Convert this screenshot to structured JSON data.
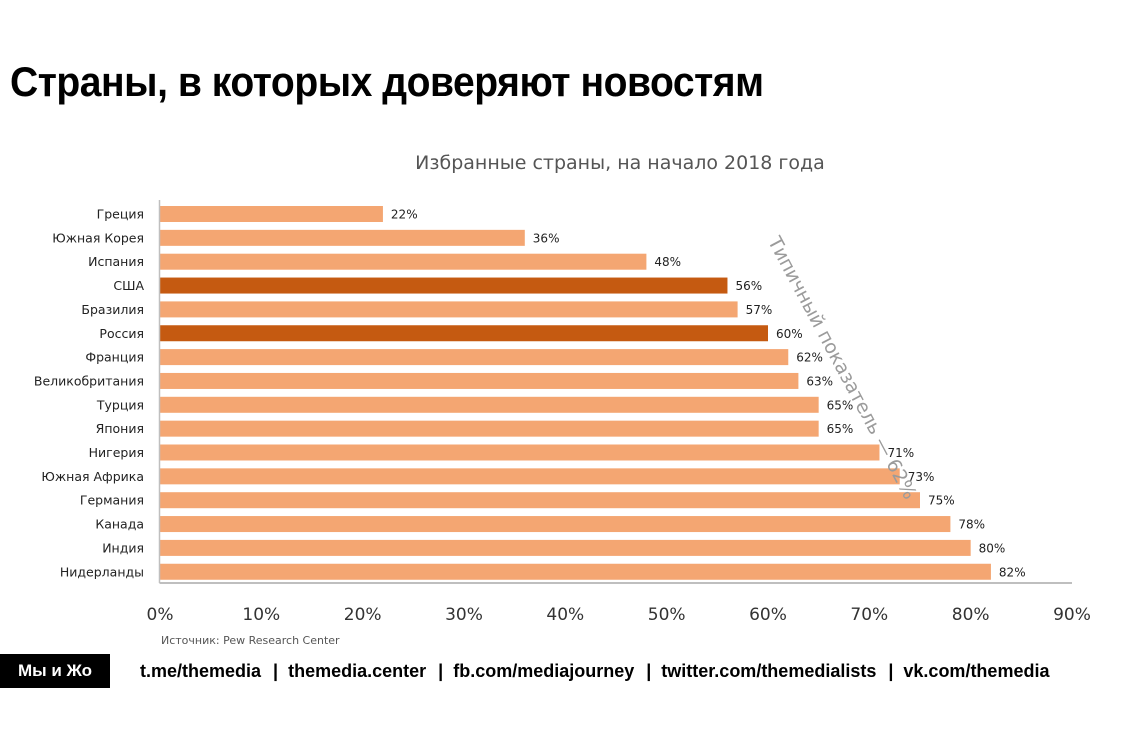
{
  "title": "Страны, в которых доверяют новостям",
  "chart_data": {
    "type": "bar",
    "orientation": "horizontal",
    "title": "Избранные страны, на начало 2018 года",
    "categories": [
      "Греция",
      "Южная Корея",
      "Испания",
      "США",
      "Бразилия",
      "Россия",
      "Франция",
      "Великобритания",
      "Турция",
      "Япония",
      "Нигерия",
      "Южная Африка",
      "Германия",
      "Канада",
      "Индия",
      "Нидерланды"
    ],
    "values": [
      22,
      36,
      48,
      56,
      57,
      60,
      62,
      63,
      65,
      65,
      71,
      73,
      75,
      78,
      80,
      82
    ],
    "value_labels": [
      "22%",
      "36%",
      "48%",
      "56%",
      "57%",
      "60%",
      "62%",
      "63%",
      "65%",
      "65%",
      "71%",
      "73%",
      "75%",
      "78%",
      "80%",
      "82%"
    ],
    "highlighted": [
      "США",
      "Россия"
    ],
    "xlim": [
      0,
      90
    ],
    "x_ticks": [
      0,
      10,
      20,
      30,
      40,
      50,
      60,
      70,
      80,
      90
    ],
    "x_tick_labels": [
      "0%",
      "10%",
      "20%",
      "30%",
      "40%",
      "50%",
      "60%",
      "70%",
      "80%",
      "90%"
    ],
    "xlabel": "",
    "ylabel": "",
    "grid": false,
    "legend": "none",
    "colors": {
      "bar": "#F4A672",
      "highlight": "#C55A11",
      "axis": "#BFBFBF"
    },
    "annotation": "Типичный показатель — 62%"
  },
  "source": "Источник: Pew Research Center",
  "footer": {
    "brand": "Мы и Жо",
    "links": [
      "t.me/themedia",
      "themedia.center",
      "fb.com/mediajourney",
      "twitter.com/themedialists",
      "vk.com/themedia"
    ],
    "separator": "|"
  }
}
